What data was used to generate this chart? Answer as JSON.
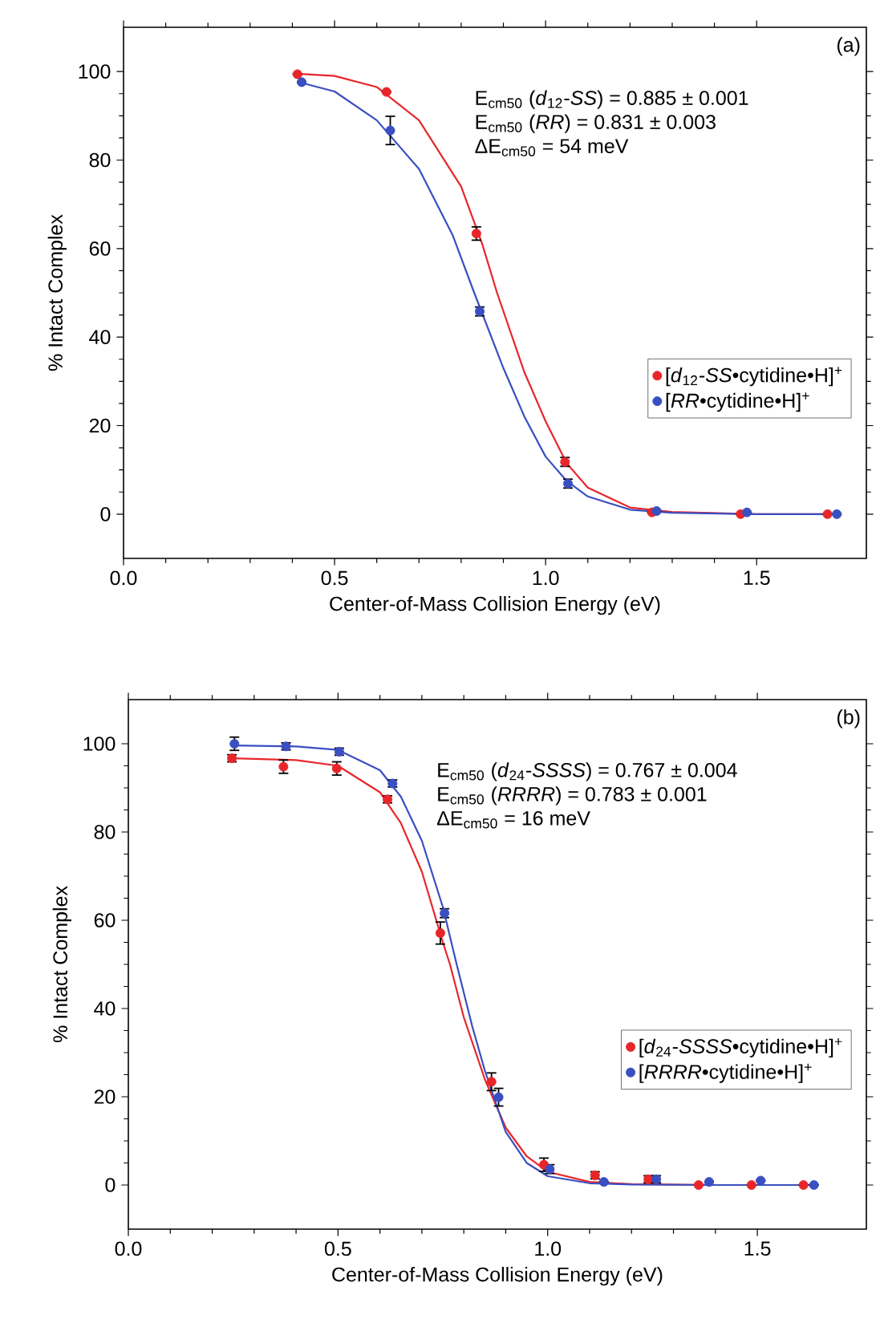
{
  "chart_data": [
    {
      "type": "scatter",
      "xlabel": "Center-of-Mass Collision Energy (eV)",
      "ylabel": "% Intact Complex",
      "xlim": [
        0,
        1.76
      ],
      "ylim": [
        -10,
        110
      ],
      "xticks": [
        {
          "value": 0,
          "label": "0.0"
        },
        {
          "value": 0.5,
          "label": "0.5"
        },
        {
          "value": 1,
          "label": "1.0"
        },
        {
          "value": 1.5,
          "label": "1.5"
        }
      ],
      "yticks": [
        0,
        20,
        40,
        60,
        80,
        100
      ],
      "legend": "right",
      "grid": false,
      "annotations": [
        "(a)",
        "E$_{cm50}$ (*d*$_{12}$-*SS*) = 0.885 ± 0.001",
        "E$_{cm50}$ (*RR*) = 0.831 ± 0.003",
        "ΔE$_{cm50}$ = 54 meV"
      ],
      "series": [
        {
          "type": "line",
          "marker": "none",
          "color": "#e8262a",
          "x": [
            0.41,
            0.5,
            0.6,
            0.7,
            0.8,
            0.85,
            0.885,
            0.95,
            1.0,
            1.05,
            1.1,
            1.2,
            1.3,
            1.5,
            1.69
          ],
          "values": [
            99.5,
            99,
            96.5,
            89,
            74,
            61,
            50,
            32,
            21,
            11.5,
            6,
            1.5,
            0.5,
            0,
            0
          ]
        },
        {
          "type": "line",
          "marker": "none",
          "color": "#3a4fc0",
          "x": [
            0.42,
            0.5,
            0.6,
            0.7,
            0.78,
            0.831,
            0.9,
            0.95,
            1.0,
            1.05,
            1.1,
            1.2,
            1.3,
            1.5,
            1.69
          ],
          "values": [
            97.5,
            95.5,
            89,
            78,
            63,
            50,
            33,
            22,
            13,
            7.5,
            4,
            1,
            0.3,
            0,
            0
          ]
        },
        {
          "marker": "circle",
          "name": "[*d*$_{12}$-*SS*•cytidine•H]$^{+}$",
          "color": "#e8262a",
          "x": [
            0.412,
            0.623,
            0.836,
            1.046,
            1.252,
            1.462,
            1.668
          ],
          "values": [
            99.4,
            95.4,
            63.4,
            11.8,
            0.4,
            0,
            0
          ],
          "errors": [
            null,
            null,
            1.5,
            1,
            null,
            null,
            null
          ]
        },
        {
          "marker": "circle",
          "name": "[*RR*•cytidine•H]$^{+}$",
          "color": "#3a4fc0",
          "x": [
            0.422,
            0.632,
            0.844,
            1.053,
            1.263,
            1.477,
            1.69
          ],
          "values": [
            97.6,
            86.7,
            45.8,
            6.9,
            0.7,
            0.4,
            0
          ],
          "errors": [
            null,
            3.2,
            1,
            1,
            null,
            null,
            null
          ]
        }
      ]
    },
    {
      "type": "scatter",
      "xlabel": "Center-of-Mass Collision Energy (eV)",
      "ylabel": "% Intact Complex",
      "xlim": [
        0,
        1.76
      ],
      "ylim": [
        -10,
        110
      ],
      "xticks": [
        {
          "value": 0,
          "label": "0.0"
        },
        {
          "value": 0.5,
          "label": "0.5"
        },
        {
          "value": 1,
          "label": "1.0"
        },
        {
          "value": 1.5,
          "label": "1.5"
        }
      ],
      "yticks": [
        0,
        20,
        40,
        60,
        80,
        100
      ],
      "legend": "right",
      "grid": false,
      "annotations": [
        "(b)",
        "E$_{cm50}$ (*d*$_{24}$-*SSSS*) = 0.767 ± 0.004",
        "E$_{cm50}$ (*RRRR*) = 0.783 ± 0.001",
        "ΔE$_{cm50}$ = 16 meV"
      ],
      "series": [
        {
          "type": "line",
          "marker": "none",
          "color": "#e8262a",
          "x": [
            0.25,
            0.4,
            0.5,
            0.6,
            0.65,
            0.7,
            0.75,
            0.767,
            0.8,
            0.85,
            0.9,
            0.95,
            1.0,
            1.1,
            1.2,
            1.4,
            1.63
          ],
          "values": [
            96.7,
            96.3,
            95,
            89,
            82,
            71,
            55,
            50,
            38,
            24,
            13,
            6.5,
            3,
            0.7,
            0.2,
            0,
            0
          ]
        },
        {
          "type": "line",
          "marker": "none",
          "color": "#3a4fc0",
          "x": [
            0.25,
            0.4,
            0.5,
            0.6,
            0.65,
            0.7,
            0.75,
            0.783,
            0.82,
            0.85,
            0.9,
            0.95,
            1.0,
            1.1,
            1.2,
            1.4,
            1.63
          ],
          "values": [
            99.6,
            99.4,
            98.6,
            94,
            88,
            78,
            63,
            50,
            36,
            26,
            12,
            5,
            2,
            0.4,
            0.1,
            0,
            0
          ]
        },
        {
          "marker": "circle",
          "name": "[*d*$_{24}$-*SSSS*•cytidine•H]$^{+}$",
          "color": "#e8262a",
          "x": [
            0.247,
            0.37,
            0.497,
            0.618,
            0.744,
            0.866,
            0.991,
            1.113,
            1.24,
            1.36,
            1.486,
            1.61
          ],
          "values": [
            96.7,
            94.8,
            94.4,
            87.4,
            57.1,
            23.4,
            4.6,
            2.2,
            1.3,
            0,
            0,
            0
          ],
          "errors": [
            0.8,
            1.5,
            1.5,
            0.8,
            2.5,
            2,
            1.5,
            0.8,
            0.8,
            null,
            null,
            null
          ]
        },
        {
          "marker": "circle",
          "name": "[*RRRR*•cytidine•H]$^{+}$",
          "color": "#3a4fc0",
          "x": [
            0.253,
            0.376,
            0.503,
            0.63,
            0.754,
            0.883,
            1.005,
            1.134,
            1.259,
            1.385,
            1.508,
            1.635
          ],
          "values": [
            100,
            99.4,
            98.2,
            91,
            61.6,
            19.9,
            3.6,
            0.7,
            1.3,
            0.7,
            1,
            0
          ],
          "errors": [
            1.5,
            0.8,
            0.8,
            0.8,
            1,
            2,
            1,
            null,
            0.8,
            null,
            null,
            null
          ]
        }
      ]
    }
  ]
}
